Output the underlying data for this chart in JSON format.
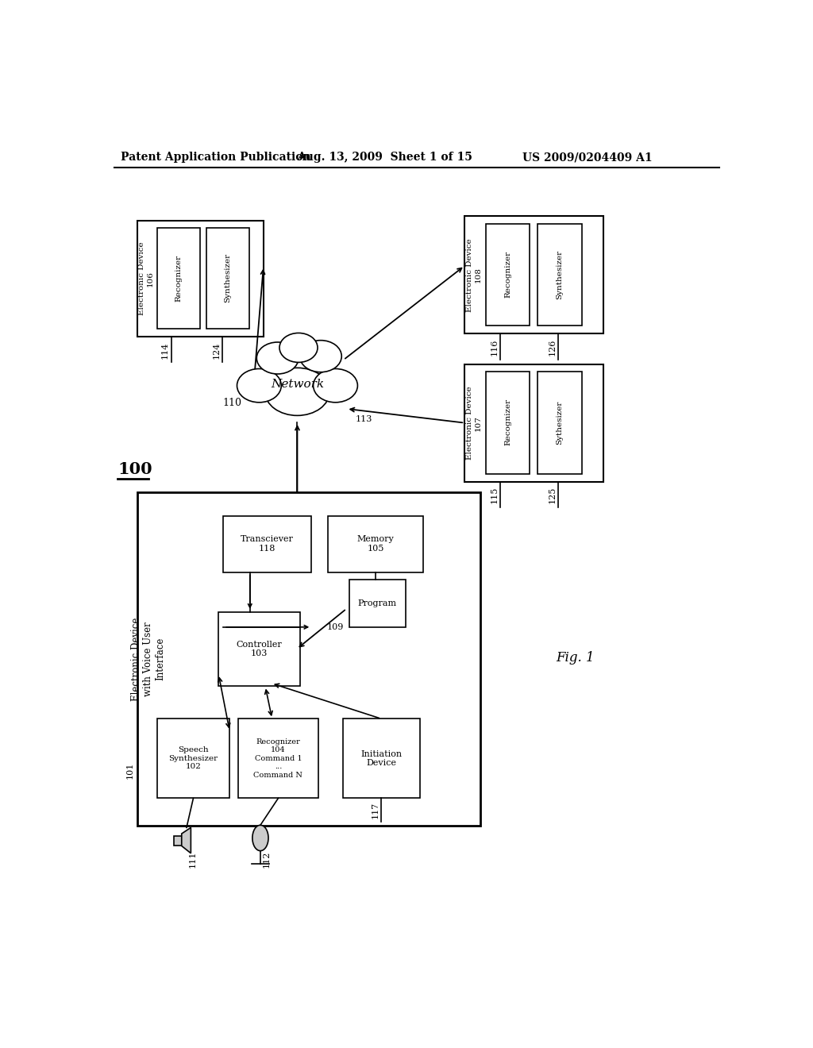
{
  "bg": "#ffffff",
  "header_left": "Patent Application Publication",
  "header_center": "Aug. 13, 2009  Sheet 1 of 15",
  "header_right": "US 2009/0204409 A1",
  "fig_label": "Fig. 1",
  "cloud_label": "Network",
  "cloud_ref": "113",
  "ref_110": "110",
  "ref_100": "100",
  "ref_101": "101",
  "ref_109": "109",
  "ref_117": "117",
  "ref_111": "111",
  "ref_112": "112"
}
